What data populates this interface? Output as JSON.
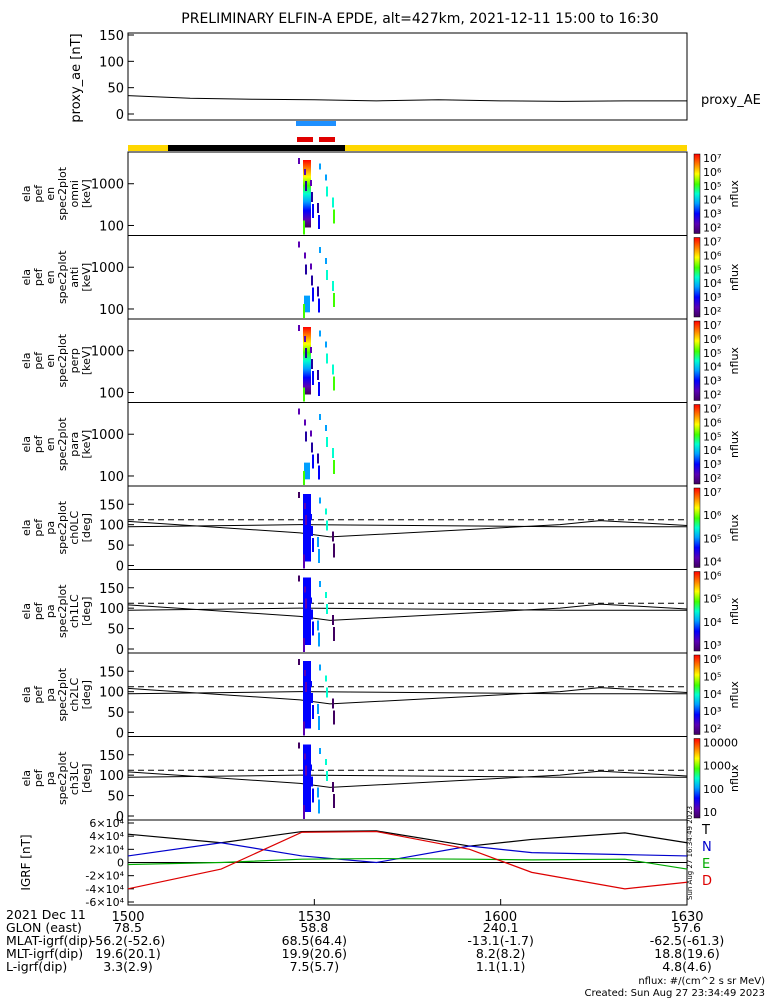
{
  "title": "PRELIMINARY ELFIN-A EPDE, alt=427km, 2021-12-11 15:00 to 16:30",
  "colors": {
    "sunlit_bar": "#ffd700",
    "eclipse_bar": "#000000",
    "blue_marker": "#1e90ff",
    "red_marker": "#e00000",
    "trace_T": "#000000",
    "trace_N": "#0000cc",
    "trace_E": "#00aa00",
    "trace_D": "#dd0000"
  },
  "time_axis": {
    "date_label": "2021 Dec 11",
    "tick_labels": [
      "1500",
      "1530",
      "1600",
      "1630"
    ]
  },
  "ephemeris": {
    "rows": [
      {
        "label": "GLON (east)",
        "values": [
          "78.5",
          "58.8",
          "240.1",
          "57.6"
        ]
      },
      {
        "label": "MLAT-igrf(dip)",
        "values": [
          "-56.2(-52.6)",
          "68.5(64.4)",
          "-13.1(-1.7)",
          "-62.5(-61.3)"
        ]
      },
      {
        "label": "MLT-igrf(dip)",
        "values": [
          "19.6(20.1)",
          "19.9(20.6)",
          "8.2(8.2)",
          "18.8(19.6)"
        ]
      },
      {
        "label": "L-igrf(dip)",
        "values": [
          "3.3(2.9)",
          "7.5(5.7)",
          "1.1(1.1)",
          "4.8(4.6)"
        ]
      }
    ]
  },
  "footer": {
    "units": "nflux: #/(cm^2 s sr MeV)",
    "created": "Created: Sun Aug 27 23:34:49 2023",
    "side_stamp": "Sun Aug 27 16:34:49 2023"
  },
  "chart_data": [
    {
      "type": "line",
      "ylabel": "proxy_ae [nT]",
      "ylim": [
        0,
        150
      ],
      "yticks": [
        "0",
        "50",
        "100",
        "150"
      ],
      "series": [
        {
          "name": "proxy_AE",
          "x": [
            0,
            10,
            20,
            30,
            40,
            50,
            60,
            70,
            80,
            90
          ],
          "y": [
            35,
            30,
            28,
            27,
            25,
            27,
            25,
            24,
            25,
            25
          ]
        }
      ]
    },
    {
      "type": "heatmap",
      "panels": [
        {
          "ylabel": [
            "ela",
            "pef",
            "en",
            "spec2plot",
            "omni",
            "[keV]"
          ],
          "yticks": [
            "100",
            "1000"
          ],
          "cbar_ticks": [
            "10^2",
            "10^3",
            "10^4",
            "10^5",
            "10^6",
            "10^7"
          ],
          "cbar_label": "nflux"
        },
        {
          "ylabel": [
            "ela",
            "pef",
            "en",
            "spec2plot",
            "anti",
            "[keV]"
          ],
          "yticks": [
            "100",
            "1000"
          ],
          "cbar_ticks": [
            "10^2",
            "10^3",
            "10^4",
            "10^5",
            "10^6",
            "10^7"
          ],
          "cbar_label": "nflux"
        },
        {
          "ylabel": [
            "ela",
            "pef",
            "en",
            "spec2plot",
            "perp",
            "[keV]"
          ],
          "yticks": [
            "100",
            "1000"
          ],
          "cbar_ticks": [
            "10^2",
            "10^3",
            "10^4",
            "10^5",
            "10^6",
            "10^7"
          ],
          "cbar_label": "nflux"
        },
        {
          "ylabel": [
            "ela",
            "pef",
            "en",
            "spec2plot",
            "para",
            "[keV]"
          ],
          "yticks": [
            "100",
            "1000"
          ],
          "cbar_ticks": [
            "10^2",
            "10^3",
            "10^4",
            "10^5",
            "10^6",
            "10^7"
          ],
          "cbar_label": "nflux"
        },
        {
          "ylabel": [
            "ela",
            "pef",
            "pa",
            "spec2plot",
            "ch0LC",
            "[deg]"
          ],
          "yticks": [
            "0",
            "50",
            "100",
            "150"
          ],
          "cbar_ticks": [
            "10^4",
            "10^5",
            "10^6",
            "10^7"
          ],
          "cbar_label": "nflux"
        },
        {
          "ylabel": [
            "ela",
            "pef",
            "pa",
            "spec2plot",
            "ch1LC",
            "[deg]"
          ],
          "yticks": [
            "0",
            "50",
            "100",
            "150"
          ],
          "cbar_ticks": [
            "10^3",
            "10^4",
            "10^5",
            "10^6"
          ],
          "cbar_label": "nflux"
        },
        {
          "ylabel": [
            "ela",
            "pef",
            "pa",
            "spec2plot",
            "ch2LC",
            "[deg]"
          ],
          "yticks": [
            "0",
            "50",
            "100",
            "150"
          ],
          "cbar_ticks": [
            "10^2",
            "10^3",
            "10^4",
            "10^5",
            "10^6"
          ],
          "cbar_label": "nflux"
        },
        {
          "ylabel": [
            "ela",
            "pef",
            "pa",
            "spec2plot",
            "ch3LC",
            "[deg]"
          ],
          "yticks": [
            "0",
            "50",
            "100",
            "150"
          ],
          "cbar_ticks": [
            "10",
            "100",
            "1000",
            "10000"
          ],
          "cbar_label": "nflux"
        }
      ]
    },
    {
      "type": "line",
      "ylabel": "IGRF [nT]",
      "ylim": [
        -60000,
        60000
      ],
      "yticks": [
        "-6×10^4",
        "-4×10^4",
        "-2×10^4",
        "0",
        "2×10^4",
        "4×10^4",
        "6×10^4"
      ],
      "series": [
        {
          "name": "T",
          "x": [
            0,
            15,
            28,
            40,
            55,
            65,
            80,
            90
          ],
          "y": [
            43000,
            30000,
            47000,
            48000,
            25000,
            35000,
            45000,
            30000
          ]
        },
        {
          "name": "N",
          "x": [
            0,
            15,
            28,
            40,
            55,
            65,
            80,
            90
          ],
          "y": [
            10000,
            30000,
            10000,
            0,
            25000,
            15000,
            12000,
            10000
          ]
        },
        {
          "name": "E",
          "x": [
            0,
            15,
            28,
            40,
            55,
            65,
            80,
            90
          ],
          "y": [
            -3000,
            0,
            5000,
            6000,
            5000,
            4000,
            5000,
            -10000
          ]
        },
        {
          "name": "D",
          "x": [
            0,
            15,
            28,
            40,
            55,
            65,
            80,
            90
          ],
          "y": [
            -40000,
            -10000,
            46000,
            47000,
            20000,
            -15000,
            -40000,
            -30000
          ]
        }
      ]
    }
  ]
}
